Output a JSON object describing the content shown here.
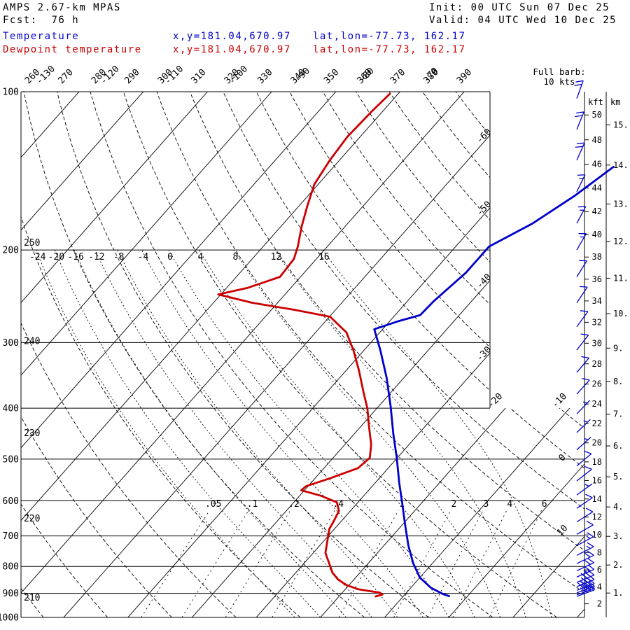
{
  "header": {
    "model": "AMPS 2.67-km MPAS",
    "forecast": "Fcst:  76 h",
    "init": "Init: 00 UTC Sun 07 Dec 25",
    "valid": "Valid: 04 UTC Wed 10 Dec 25"
  },
  "legend": {
    "temperature": {
      "label": "Temperature",
      "xy": "x,y=181.04,670.97",
      "latlon": "lat,lon=-77.73, 162.17",
      "color": "#0000cc"
    },
    "dewpoint": {
      "label": "Dewpoint temperature",
      "xy": "x,y=181.04,670.97",
      "latlon": "lat,lon=-77.73, 162.17",
      "color": "#cc0000"
    }
  },
  "chart_data": {
    "type": "skewt_log_p_sounding",
    "pressure_ticks_hpa": [
      100,
      200,
      300,
      400,
      500,
      600,
      700,
      800,
      900,
      1000
    ],
    "isotherms_c": {
      "min": -140,
      "max": 20,
      "step": 10
    },
    "isotherm_labels_top_c": [
      -130,
      -120,
      -110,
      -100,
      -90,
      -80,
      -70
    ],
    "isotherm_labels_right_c": [
      -60,
      -50,
      -40,
      -30,
      -20,
      -10,
      0,
      10
    ],
    "dry_adiabats_k": {
      "min": 210,
      "max": 390,
      "step": 10
    },
    "dry_adiabat_labels_top_k": [
      260,
      270,
      280,
      290,
      300,
      310,
      320,
      330,
      340,
      350,
      360,
      370,
      380,
      390
    ],
    "dry_adiabat_labels_left_k": [
      250,
      240,
      230,
      220,
      210
    ],
    "moist_adiabat_labels_c": [
      -24,
      -20,
      -16,
      -12,
      -8,
      -4,
      0,
      4,
      8,
      12,
      16
    ],
    "mixing_ratio_g_kg": [
      0.05,
      0.1,
      0.2,
      0.4,
      1,
      2,
      3,
      4,
      6
    ],
    "mixing_ratio_labels": [
      ".05",
      ".1",
      ".2",
      ".4",
      "1",
      "2",
      "3",
      "4",
      "6"
    ],
    "altitude_kft_ticks": [
      2,
      4,
      6,
      8,
      10,
      12,
      14,
      16,
      18,
      20,
      22,
      24,
      26,
      28,
      30,
      32,
      34,
      36,
      38,
      40,
      42,
      44,
      46,
      48,
      50
    ],
    "altitude_km_ticks": [
      1,
      2,
      3,
      4,
      5,
      6,
      7,
      8,
      9,
      10,
      11,
      12,
      13,
      14,
      15
    ],
    "axis_headers": {
      "kft": "kft",
      "km": "km"
    },
    "wind_barbs": {
      "legend1": "Full barb:",
      "legend2": "10 kts",
      "full_barb_kts": 10,
      "color": "#0000cc",
      "levels": [
        {
          "p": 103,
          "kts": 20,
          "dir": 20
        },
        {
          "p": 118,
          "kts": 20,
          "dir": 22
        },
        {
          "p": 135,
          "kts": 20,
          "dir": 24
        },
        {
          "p": 155,
          "kts": 15,
          "dir": 26
        },
        {
          "p": 178,
          "kts": 15,
          "dir": 28
        },
        {
          "p": 200,
          "kts": 15,
          "dir": 30
        },
        {
          "p": 225,
          "kts": 10,
          "dir": 32
        },
        {
          "p": 252,
          "kts": 10,
          "dir": 34
        },
        {
          "p": 280,
          "kts": 10,
          "dir": 36
        },
        {
          "p": 310,
          "kts": 10,
          "dir": 38
        },
        {
          "p": 342,
          "kts": 10,
          "dir": 40
        },
        {
          "p": 376,
          "kts": 10,
          "dir": 42
        },
        {
          "p": 410,
          "kts": 5,
          "dir": 44
        },
        {
          "p": 445,
          "kts": 5,
          "dir": 46
        },
        {
          "p": 480,
          "kts": 5,
          "dir": 48
        },
        {
          "p": 515,
          "kts": 10,
          "dir": 50
        },
        {
          "p": 550,
          "kts": 10,
          "dir": 52
        },
        {
          "p": 585,
          "kts": 5,
          "dir": 54
        },
        {
          "p": 620,
          "kts": 10,
          "dir": 56
        },
        {
          "p": 658,
          "kts": 10,
          "dir": 58
        },
        {
          "p": 695,
          "kts": 10,
          "dir": 60
        },
        {
          "p": 730,
          "kts": 15,
          "dir": 62
        },
        {
          "p": 762,
          "kts": 15,
          "dir": 63
        },
        {
          "p": 790,
          "kts": 20,
          "dir": 64
        },
        {
          "p": 815,
          "kts": 20,
          "dir": 65
        },
        {
          "p": 838,
          "kts": 25,
          "dir": 66
        },
        {
          "p": 858,
          "kts": 30,
          "dir": 67
        },
        {
          "p": 874,
          "kts": 35,
          "dir": 68
        },
        {
          "p": 888,
          "kts": 40,
          "dir": 69
        },
        {
          "p": 898,
          "kts": 35,
          "dir": 70
        },
        {
          "p": 906,
          "kts": 30,
          "dir": 70
        },
        {
          "p": 912,
          "kts": 25,
          "dir": 70
        }
      ]
    },
    "temperature_trace": {
      "color": "#0000cc",
      "points_p_t": [
        [
          139,
          -36.4
        ],
        [
          158,
          -38.5
        ],
        [
          178,
          -41.2
        ],
        [
          197,
          -44.8
        ],
        [
          221,
          -44.8
        ],
        [
          250,
          -45.9
        ],
        [
          266,
          -46.1
        ],
        [
          273,
          -48.6
        ],
        [
          283,
          -51.3
        ],
        [
          310,
          -47.5
        ],
        [
          350,
          -42.7
        ],
        [
          396,
          -38.2
        ],
        [
          448,
          -33.9
        ],
        [
          497,
          -30.1
        ],
        [
          554,
          -26.3
        ],
        [
          608,
          -22.9
        ],
        [
          666,
          -19.6
        ],
        [
          730,
          -16.2
        ],
        [
          789,
          -13.0
        ],
        [
          840,
          -10.0
        ],
        [
          878,
          -6.9
        ],
        [
          903,
          -4.1
        ],
        [
          911,
          -2.9
        ]
      ]
    },
    "dewpoint_trace": {
      "color": "#cc0000",
      "points_p_t": [
        [
          101,
          -81.3
        ],
        [
          109,
          -81.7
        ],
        [
          122,
          -82.0
        ],
        [
          135,
          -81.5
        ],
        [
          150,
          -80.6
        ],
        [
          165,
          -78.7
        ],
        [
          181,
          -76.7
        ],
        [
          197,
          -74.6
        ],
        [
          208,
          -73.5
        ],
        [
          225,
          -73.2
        ],
        [
          236,
          -76.7
        ],
        [
          243,
          -80.4
        ],
        [
          252,
          -74.0
        ],
        [
          260,
          -66.4
        ],
        [
          268,
          -59.9
        ],
        [
          287,
          -55.2
        ],
        [
          310,
          -51.7
        ],
        [
          340,
          -47.9
        ],
        [
          373,
          -44.3
        ],
        [
          400,
          -41.5
        ],
        [
          435,
          -38.6
        ],
        [
          469,
          -35.9
        ],
        [
          497,
          -34.3
        ],
        [
          520,
          -34.7
        ],
        [
          544,
          -37.7
        ],
        [
          563,
          -40.3
        ],
        [
          573,
          -40.5
        ],
        [
          587,
          -36.7
        ],
        [
          604,
          -33.3
        ],
        [
          627,
          -31.8
        ],
        [
          655,
          -31.2
        ],
        [
          679,
          -30.8
        ],
        [
          703,
          -29.9
        ],
        [
          754,
          -28.1
        ],
        [
          789,
          -26.1
        ],
        [
          822,
          -24.3
        ],
        [
          847,
          -22.5
        ],
        [
          868,
          -20.4
        ],
        [
          884,
          -18.0
        ],
        [
          892,
          -15.7
        ],
        [
          897,
          -14.2
        ],
        [
          905,
          -13.5
        ],
        [
          912,
          -14.3
        ]
      ]
    }
  }
}
